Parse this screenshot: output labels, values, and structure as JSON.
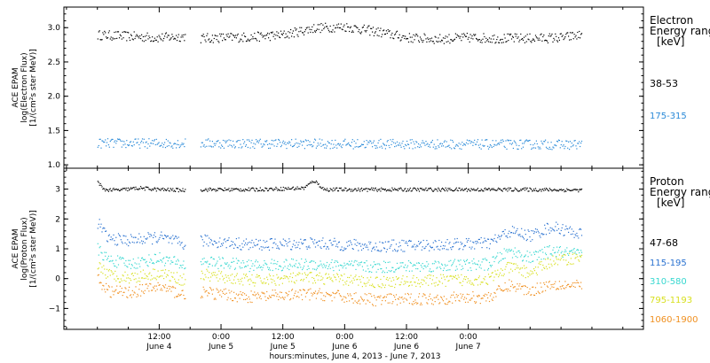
{
  "chart_data": [
    {
      "type": "scatter",
      "panel": "electron",
      "ylabel": [
        "ACE EPAM",
        "log(Electron Flux)",
        "[1/(cm²s ster MeV)]"
      ],
      "ylim": [
        0.95,
        3.3
      ],
      "yticks": [
        1.0,
        1.5,
        2.0,
        2.5,
        3.0
      ],
      "ytick_labels": [
        "1.0",
        "1.5",
        "2.0",
        "2.5",
        "3.0"
      ],
      "legend_title": [
        "Electron",
        "Energy ranges",
        "[keV]"
      ],
      "gap": [
        17.0,
        20.0
      ],
      "series": [
        {
          "name": "38-53",
          "color": "#000000",
          "x": [
            0,
            6,
            12,
            17,
            20,
            24,
            30,
            36,
            42,
            48,
            54,
            60,
            66,
            72,
            78,
            84,
            90,
            94
          ],
          "y": [
            2.9,
            2.88,
            2.86,
            2.88,
            2.85,
            2.86,
            2.87,
            2.9,
            3.0,
            3.02,
            2.95,
            2.86,
            2.84,
            2.86,
            2.85,
            2.85,
            2.86,
            2.9
          ]
        },
        {
          "name": "175-315",
          "color": "#2a8ad8",
          "x": [
            0,
            17,
            20,
            94
          ],
          "y": [
            1.32,
            1.32,
            1.32,
            1.3
          ]
        }
      ]
    },
    {
      "type": "scatter",
      "panel": "proton",
      "ylabel": [
        "ACE EPAM",
        "log(Proton Flux)",
        "[1/(cm²s ster MeV)]"
      ],
      "ylim": [
        -1.7,
        3.7
      ],
      "yticks": [
        -1,
        0,
        1,
        2,
        3
      ],
      "ytick_labels": [
        "−1",
        "0",
        "1",
        "2",
        "3"
      ],
      "legend_title": [
        "Proton",
        "Energy ranges",
        "[keV]"
      ],
      "gap": [
        17.0,
        20.0
      ],
      "series": [
        {
          "name": "47-68",
          "color": "#000000",
          "x": [
            0,
            1,
            4,
            8,
            12,
            17,
            20,
            30,
            40,
            42,
            44,
            48,
            60,
            72,
            84,
            94
          ],
          "y": [
            3.3,
            3.0,
            2.98,
            3.05,
            3.0,
            2.98,
            3.0,
            3.0,
            3.05,
            3.3,
            3.0,
            3.0,
            3.0,
            3.0,
            3.0,
            2.98
          ]
        },
        {
          "name": "115-195",
          "color": "#2a72d0",
          "x": [
            0,
            2,
            6,
            12,
            17,
            20,
            30,
            42,
            54,
            66,
            76,
            80,
            84,
            88,
            94
          ],
          "y": [
            1.9,
            1.35,
            1.3,
            1.4,
            1.15,
            1.3,
            1.15,
            1.2,
            1.1,
            1.15,
            1.2,
            1.6,
            1.45,
            1.75,
            1.5
          ]
        },
        {
          "name": "310-580",
          "color": "#38d8d0",
          "x": [
            0,
            2,
            6,
            12,
            17,
            20,
            30,
            42,
            54,
            66,
            76,
            80,
            84,
            88,
            94
          ],
          "y": [
            1.0,
            0.65,
            0.5,
            0.7,
            0.45,
            0.6,
            0.45,
            0.5,
            0.4,
            0.45,
            0.5,
            0.95,
            0.7,
            0.95,
            0.8
          ]
        },
        {
          "name": "795-1193",
          "color": "#d8e020",
          "x": [
            0,
            2,
            6,
            12,
            17,
            20,
            30,
            42,
            54,
            66,
            76,
            80,
            84,
            88,
            94
          ],
          "y": [
            0.5,
            0.15,
            0.05,
            0.2,
            -0.05,
            0.15,
            -0.05,
            0.05,
            -0.1,
            -0.05,
            0.0,
            0.4,
            0.2,
            0.6,
            0.75
          ]
        },
        {
          "name": "1060-1900",
          "color": "#f09020",
          "x": [
            0,
            2,
            6,
            12,
            17,
            20,
            30,
            42,
            54,
            66,
            76,
            80,
            84,
            88,
            94
          ],
          "y": [
            0.0,
            -0.4,
            -0.45,
            -0.25,
            -0.55,
            -0.45,
            -0.6,
            -0.5,
            -0.7,
            -0.65,
            -0.6,
            -0.2,
            -0.4,
            -0.15,
            -0.25
          ]
        }
      ]
    }
  ],
  "xaxis": {
    "xlim": [
      -6.5,
      106
    ],
    "major_ticks": [
      {
        "x": 12,
        "time": "12:00",
        "day": "June 4"
      },
      {
        "x": 24,
        "time": "0:00",
        "day": "June 5"
      },
      {
        "x": 36,
        "time": "12:00",
        "day": "June 5"
      },
      {
        "x": 48,
        "time": "0:00",
        "day": "June 6"
      },
      {
        "x": 60,
        "time": "12:00",
        "day": "June 6"
      },
      {
        "x": 72,
        "time": "0:00",
        "day": "June 7"
      }
    ],
    "minor_ticks": [
      -6,
      0,
      6,
      18,
      30,
      42,
      54,
      66,
      78,
      84,
      90,
      96,
      102
    ],
    "label": "hours:minutes, June  4, 2013 - June  7, 2013"
  }
}
